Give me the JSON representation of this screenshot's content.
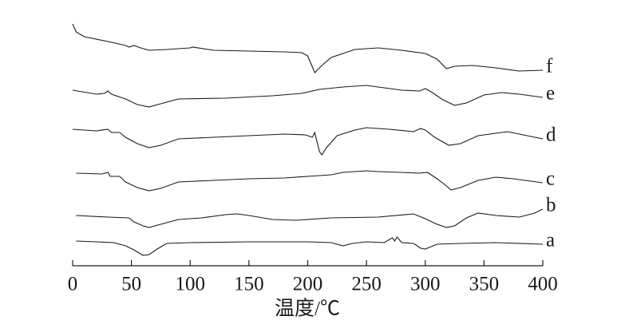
{
  "chart_data": {
    "type": "line",
    "xlabel": "温度/℃",
    "xlim": [
      0,
      400
    ],
    "xticks": [
      0,
      50,
      100,
      150,
      200,
      250,
      300,
      350,
      400
    ],
    "ylim": [
      0,
      310
    ],
    "grid": false,
    "color": "#1a1a1a",
    "series": [
      {
        "name": "a",
        "color": "#1a1a1a",
        "x": [
          3,
          20,
          35,
          45,
          52,
          60,
          65,
          72,
          80,
          100,
          150,
          200,
          220,
          230,
          238,
          250,
          265,
          272,
          274,
          276,
          280,
          290,
          296,
          300,
          310,
          330,
          360,
          400
        ],
        "values": [
          31,
          30,
          29,
          25,
          20,
          13,
          14,
          21,
          28,
          29,
          30,
          30,
          29,
          25,
          28,
          30,
          29,
          35,
          31,
          36,
          29,
          28,
          22,
          21,
          27,
          28,
          29,
          27
        ]
      },
      {
        "name": "b",
        "color": "#1a1a1a",
        "x": [
          3,
          30,
          48,
          52,
          60,
          65,
          75,
          90,
          110,
          130,
          140,
          150,
          170,
          190,
          220,
          260,
          290,
          300,
          310,
          318,
          325,
          335,
          345,
          360,
          380,
          393,
          400
        ],
        "values": [
          63,
          61,
          60,
          55,
          50,
          48,
          52,
          58,
          60,
          64,
          65,
          63,
          58,
          57,
          60,
          61,
          65,
          59,
          52,
          48,
          50,
          60,
          66,
          63,
          61,
          66,
          71
        ]
      },
      {
        "name": "c",
        "color": "#1a1a1a",
        "x": [
          3,
          25,
          30,
          32,
          40,
          45,
          55,
          65,
          75,
          90,
          120,
          150,
          180,
          200,
          220,
          230,
          250,
          260,
          280,
          295,
          302,
          310,
          318,
          322,
          330,
          345,
          360,
          375,
          400
        ],
        "values": [
          116,
          115,
          117,
          112,
          112,
          105,
          98,
          94,
          97,
          105,
          107,
          109,
          110,
          112,
          114,
          117,
          119,
          118,
          117,
          116,
          117,
          109,
          100,
          95,
          98,
          107,
          111,
          109,
          104
        ]
      },
      {
        "name": "d",
        "color": "#1a1a1a",
        "x": [
          0,
          20,
          30,
          33,
          40,
          45,
          55,
          65,
          75,
          90,
          120,
          150,
          180,
          198,
          204,
          206,
          210,
          212,
          216,
          225,
          240,
          250,
          270,
          290,
          296,
          300,
          308,
          320,
          330,
          345,
          370,
          400
        ],
        "values": [
          171,
          169,
          171,
          167,
          167,
          161,
          153,
          148,
          151,
          159,
          161,
          163,
          165,
          164,
          161,
          167,
          143,
          139,
          148,
          163,
          170,
          173,
          171,
          168,
          172,
          170,
          161,
          151,
          153,
          163,
          168,
          159
        ]
      },
      {
        "name": "e",
        "color": "#1a1a1a",
        "x": [
          0,
          20,
          27,
          30,
          33,
          45,
          55,
          65,
          75,
          90,
          130,
          170,
          195,
          210,
          230,
          250,
          260,
          280,
          295,
          300,
          305,
          315,
          325,
          335,
          350,
          365,
          380,
          400
        ],
        "values": [
          220,
          215,
          216,
          219,
          215,
          209,
          202,
          199,
          203,
          209,
          210,
          213,
          216,
          221,
          224,
          226,
          224,
          220,
          219,
          222,
          218,
          208,
          201,
          204,
          214,
          217,
          215,
          211
        ]
      },
      {
        "name": "f",
        "color": "#1a1a1a",
        "x": [
          0,
          3,
          10,
          30,
          45,
          48,
          52,
          58,
          65,
          80,
          100,
          102,
          120,
          150,
          180,
          195,
          200,
          206,
          212,
          220,
          240,
          260,
          280,
          300,
          310,
          318,
          325,
          340,
          360,
          380,
          400
        ],
        "values": [
          303,
          293,
          287,
          281,
          276,
          274,
          276,
          273,
          270,
          271,
          273,
          274,
          270,
          269,
          268,
          267,
          263,
          242,
          251,
          261,
          271,
          273,
          270,
          266,
          259,
          247,
          250,
          251,
          248,
          244,
          245
        ]
      }
    ]
  }
}
